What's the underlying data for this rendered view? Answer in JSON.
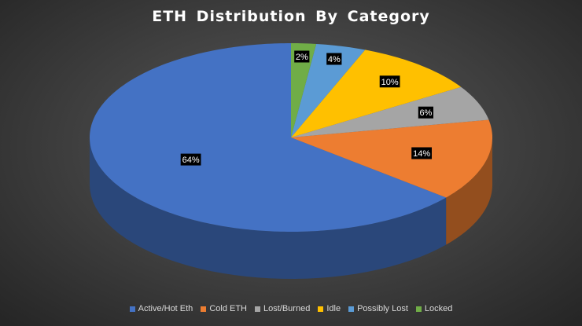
{
  "chart_data": {
    "type": "pie",
    "title": "ETH Distribution  By Category",
    "categories": [
      "Active/Hot Eth",
      "Cold ETH",
      "Lost/Burned",
      "Idle",
      "Possibly Lost",
      "Locked"
    ],
    "values": [
      64,
      14,
      6,
      10,
      4,
      2
    ],
    "data_labels": [
      "64%",
      "14%",
      "6%",
      "10%",
      "4%",
      "2%"
    ],
    "colors": [
      "#4472c4",
      "#ed7d31",
      "#a5a5a5",
      "#ffc000",
      "#5b9bd5",
      "#70ad47"
    ],
    "legend_position": "bottom",
    "style": "3d-pie"
  }
}
